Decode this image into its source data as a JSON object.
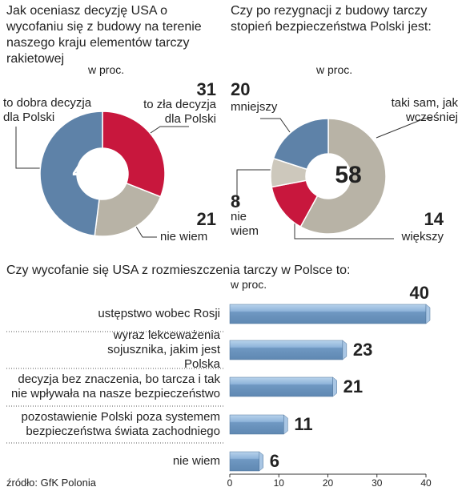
{
  "chart_data": [
    {
      "type": "pie",
      "title": "Jak oceniasz decyzję USA o wycofaniu się z budowy na terenie naszego kraju elementów tarczy rakietowej",
      "subtitle": "w proc.",
      "categories": [
        "to zła decyzja dla Polski",
        "nie wiem",
        "to dobra decyzja dla Polski"
      ],
      "values": [
        31,
        21,
        48
      ],
      "colors": [
        "#c8173d",
        "#b8b3a6",
        "#5e82a8"
      ]
    },
    {
      "type": "pie",
      "title": "Czy po rezygnacji z budowy tarczy stopień bezpieczeństwa Polski jest:",
      "subtitle": "w proc.",
      "categories": [
        "taki sam, jak wcześniej",
        "większy",
        "nie wiem",
        "mniejszy"
      ],
      "values": [
        58,
        14,
        8,
        20
      ],
      "colors": [
        "#b8b3a6",
        "#c8173d",
        "#cdc8bc",
        "#5e82a8"
      ]
    },
    {
      "type": "hbar",
      "title": "Czy wycofanie się USA z rozmieszczenia tarczy w Polsce to:",
      "subtitle": "w proc.",
      "categories": [
        "ustępstwo wobec Rosji",
        "wyraz lekceważenia sojusznika, jakim jest Polska",
        "decyzja bez znaczenia, bo tarcza i tak nie wpływała na nasze bezpieczeństwo",
        "pozostawienie Polski poza systemem bezpieczeństwa świata zachodniego",
        "nie wiem"
      ],
      "values": [
        40,
        23,
        21,
        11,
        6
      ],
      "color": "#6f98c2",
      "xlim": [
        0,
        40
      ],
      "xticks": [
        0,
        10,
        20,
        30,
        40
      ]
    }
  ],
  "source": "źródło: GfK Polonia"
}
